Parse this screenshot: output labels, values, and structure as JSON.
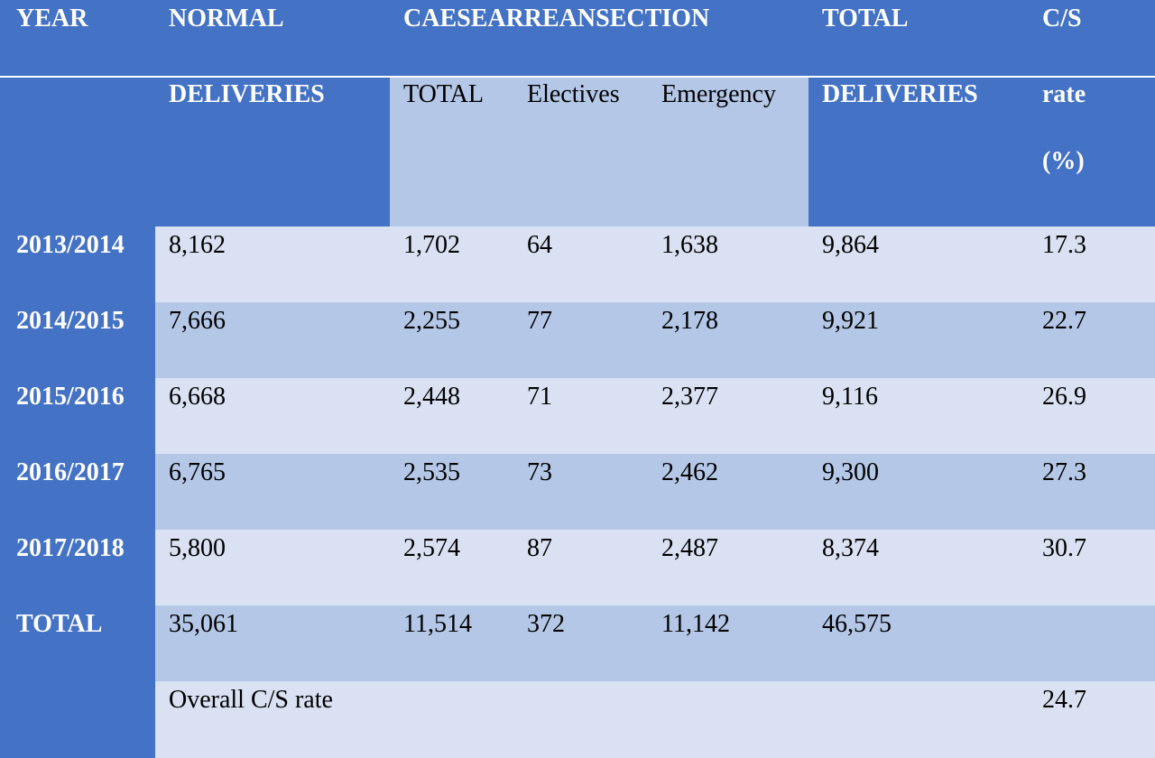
{
  "header": {
    "year": "YEAR",
    "normal_line1": "NORMAL",
    "normal_line2": "DELIVERIES",
    "cs_group": "CAESEARREANSECTION",
    "cs_total": "TOTAL",
    "cs_electives": "Electives",
    "cs_emergency": "Emergency",
    "total_line1": "TOTAL",
    "total_line2": "DELIVERIES",
    "rate_line1": "C/S",
    "rate_line2": "rate",
    "rate_line3": "(%)"
  },
  "rows": [
    {
      "year": "2013/2014",
      "normal": "8,162",
      "cs_total": "1,702",
      "electives": "64",
      "emergency": "1,638",
      "total": "9,864",
      "rate": "17.3"
    },
    {
      "year": "2014/2015",
      "normal": "7,666",
      "cs_total": "2,255",
      "electives": "77",
      "emergency": "2,178",
      "total": "9,921",
      "rate": "22.7"
    },
    {
      "year": "2015/2016",
      "normal": "6,668",
      "cs_total": "2,448",
      "electives": "71",
      "emergency": "2,377",
      "total": "9,116",
      "rate": "26.9"
    },
    {
      "year": "2016/2017",
      "normal": "6,765",
      "cs_total": "2,535",
      "electives": "73",
      "emergency": "2,462",
      "total": "9,300",
      "rate": "27.3"
    },
    {
      "year": "2017/2018",
      "normal": "5,800",
      "cs_total": "2,574",
      "electives": "87",
      "emergency": "2,487",
      "total": "8,374",
      "rate": "30.7"
    },
    {
      "year": "TOTAL",
      "normal": "35,061",
      "cs_total": "11,514",
      "electives": "372",
      "emergency": "11,142",
      "total": "46,575",
      "rate": ""
    }
  ],
  "overall": {
    "label": "Overall C/S rate",
    "rate": "24.7"
  },
  "colors": {
    "header_blue": "#4472C4",
    "band_mid": "#B4C7E7",
    "band_light": "#D9E1F2"
  }
}
